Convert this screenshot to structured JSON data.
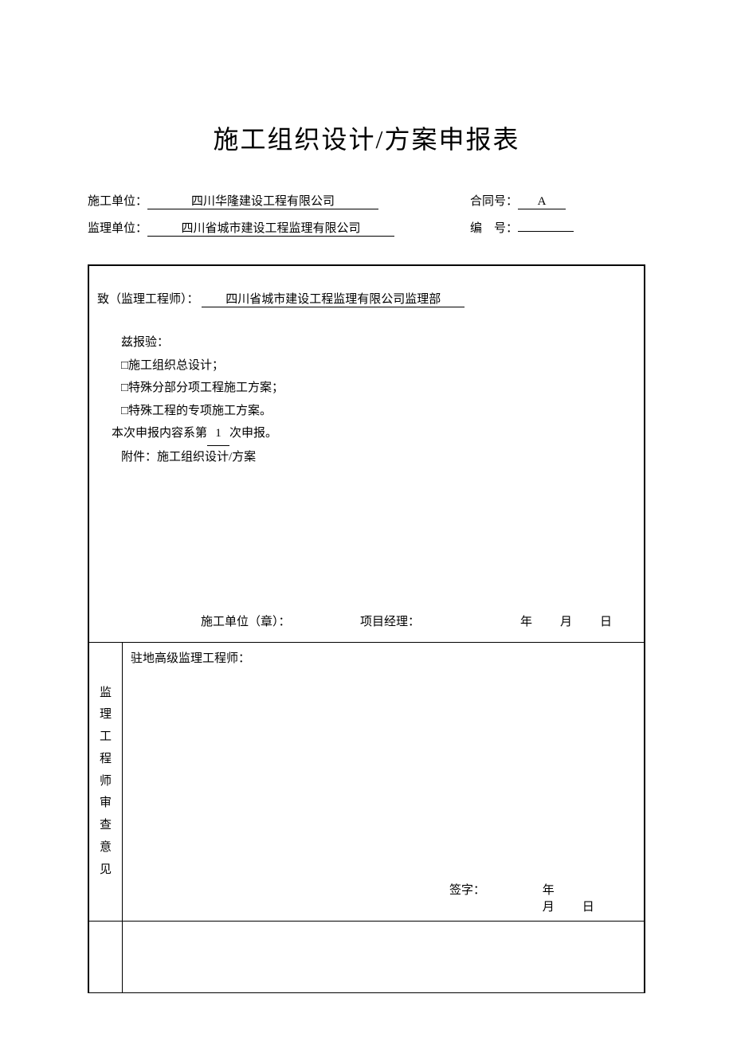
{
  "title": "施工组织设计/方案申报表",
  "header": {
    "construction_unit_label": "施工单位：",
    "construction_unit_value": "四川华隆建设工程有限公司",
    "contract_no_label": "合同号：",
    "contract_no_value": "A",
    "supervision_unit_label": "监理单位：",
    "supervision_unit_value": "四川省城市建设工程监理有限公司",
    "serial_no_label": "编 号：",
    "serial_no_value": ""
  },
  "body": {
    "to_label": "致（监理工程师）：",
    "to_value": "四川省城市建设工程监理有限公司监理部",
    "intro": "兹报验：",
    "item1": "□施工组织总设计；",
    "item2": "□特殊分部分项工程施工方案；",
    "item3": "□特殊工程的专项施工方案。",
    "report_prefix": "本次申报内容系第",
    "report_num": "1",
    "report_suffix": "次申报。",
    "attachment": "附件：施工组织设计/方案",
    "sig_unit": "施工单位（章）：",
    "sig_pm": "项目经理：",
    "date_ymd": "年 月 日"
  },
  "review": {
    "vert_label": "监理工程师审查意见",
    "resident": "驻地高级监理工程师：",
    "sig_sign": "签字：",
    "date_ymd": "年 月 日"
  },
  "style": {
    "underline_width_unit": "290px",
    "underline_width_contract": "60px",
    "underline_width_supervision": "310px",
    "underline_width_serial": "70px",
    "underline_width_to": "330px"
  }
}
